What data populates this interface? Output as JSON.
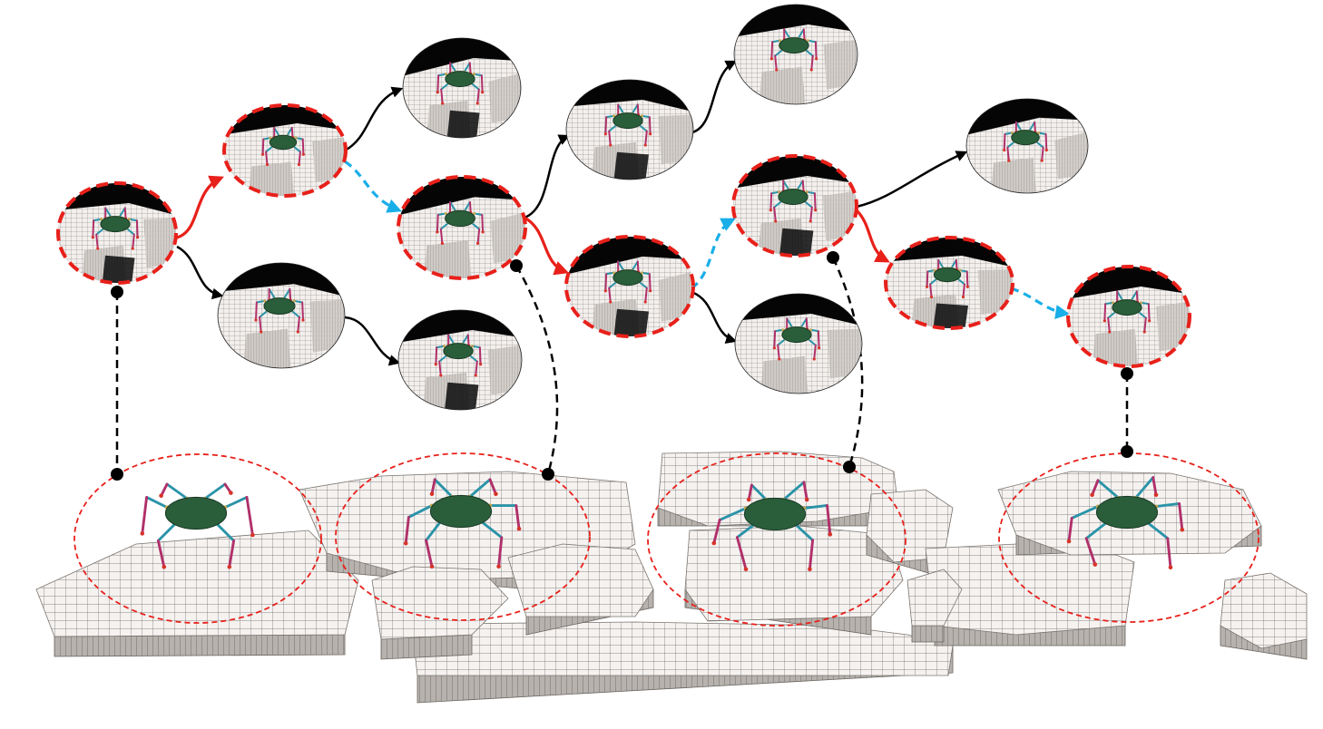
{
  "colors": {
    "background": "#ffffff",
    "selected_outline": "#e8201a",
    "selected_edge": "#e8201a",
    "alternate_edge": "#19aee8",
    "default_edge": "#000000",
    "link_line": "#000000",
    "terrain_top": "#f5f2f0",
    "terrain_side": "#b7b2ae",
    "terrain_grid": "#3a3a3a",
    "robot_body": "#2a5e3b",
    "robot_upper_leg": "#2a93a8",
    "robot_lower_leg": "#b0306a",
    "robot_joint": "#c8a850",
    "robot_foot": "#d8342a",
    "thumb_sky": "#050505"
  },
  "tree": {
    "nodes": [
      {
        "id": "n0",
        "selected": true
      },
      {
        "id": "n1",
        "selected": true
      },
      {
        "id": "n2",
        "selected": false
      },
      {
        "id": "n3",
        "selected": false
      },
      {
        "id": "n4",
        "selected": false
      },
      {
        "id": "n5",
        "selected": true
      },
      {
        "id": "n6",
        "selected": false
      },
      {
        "id": "n7",
        "selected": false
      },
      {
        "id": "n8",
        "selected": true
      },
      {
        "id": "n9",
        "selected": false
      },
      {
        "id": "n10",
        "selected": true
      },
      {
        "id": "n11",
        "selected": false
      },
      {
        "id": "n12",
        "selected": true
      },
      {
        "id": "n13",
        "selected": true
      }
    ],
    "edges": [
      {
        "from": "n0",
        "to": "n1",
        "kind": "selected"
      },
      {
        "from": "n0",
        "to": "n3",
        "kind": "default"
      },
      {
        "from": "n1",
        "to": "n2",
        "kind": "default"
      },
      {
        "from": "n1",
        "to": "n5",
        "kind": "alternate"
      },
      {
        "from": "n3",
        "to": "n4",
        "kind": "default"
      },
      {
        "from": "n5",
        "to": "n6",
        "kind": "default"
      },
      {
        "from": "n5",
        "to": "n8",
        "kind": "selected"
      },
      {
        "from": "n6",
        "to": "n7",
        "kind": "default"
      },
      {
        "from": "n8",
        "to": "n10",
        "kind": "alternate"
      },
      {
        "from": "n8",
        "to": "n9",
        "kind": "default"
      },
      {
        "from": "n10",
        "to": "n11",
        "kind": "default"
      },
      {
        "from": "n10",
        "to": "n12",
        "kind": "selected"
      },
      {
        "from": "n12",
        "to": "n13",
        "kind": "alternate"
      }
    ]
  },
  "snapshots": [
    {
      "id": "s0",
      "linked_node": "n0"
    },
    {
      "id": "s1",
      "linked_node": "n5"
    },
    {
      "id": "s2",
      "linked_node": "n10"
    },
    {
      "id": "s3",
      "linked_node": "n13"
    }
  ]
}
